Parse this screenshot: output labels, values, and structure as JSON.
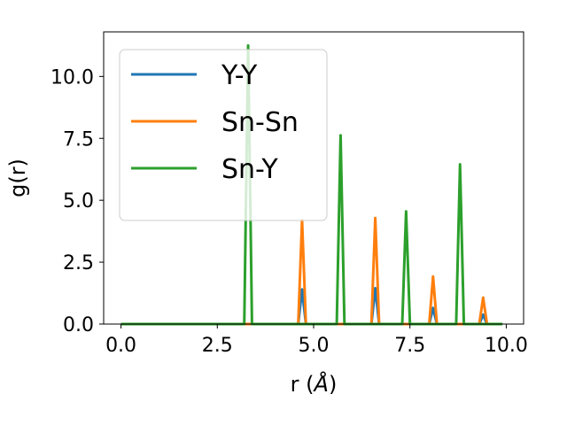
{
  "chart_data": {
    "type": "line",
    "xlabel": "r (",
    "xlabel_unit": "Å",
    "xlabel_close": ")",
    "ylabel": "g(r)",
    "xlim": [
      -0.45,
      10.45
    ],
    "ylim": [
      0,
      11.8
    ],
    "xticks": [
      0.0,
      2.5,
      5.0,
      7.5,
      10.0
    ],
    "xtick_labels": [
      "0.0",
      "2.5",
      "5.0",
      "7.5",
      "10.0"
    ],
    "yticks": [
      0.0,
      2.5,
      5.0,
      7.5,
      10.0
    ],
    "ytick_labels": [
      "0.0",
      "2.5",
      "5.0",
      "7.5",
      "10.0"
    ],
    "grid": false,
    "legend_position": "upper-left",
    "series": [
      {
        "name": "Y-Y",
        "color": "#1f77b4",
        "x": [
          0.0,
          4.6,
          4.7,
          4.8,
          6.5,
          6.6,
          6.7,
          8.0,
          8.1,
          8.2,
          9.3,
          9.4,
          9.5,
          9.9
        ],
        "y": [
          0,
          0,
          1.4,
          0,
          0,
          1.45,
          0,
          0,
          0.65,
          0,
          0,
          0.38,
          0,
          0
        ]
      },
      {
        "name": "Sn-Sn",
        "color": "#ff7f0e",
        "x": [
          0.0,
          4.6,
          4.7,
          4.8,
          6.5,
          6.6,
          6.7,
          8.0,
          8.1,
          8.2,
          9.3,
          9.4,
          9.5,
          9.9
        ],
        "y": [
          0,
          0,
          4.2,
          0,
          0,
          4.28,
          0,
          0,
          1.92,
          0,
          0,
          1.07,
          0,
          0
        ]
      },
      {
        "name": "Sn-Y",
        "color": "#2ca02c",
        "x": [
          0.0,
          3.2,
          3.3,
          3.4,
          5.6,
          5.7,
          5.8,
          7.3,
          7.4,
          7.5,
          8.7,
          8.8,
          8.9,
          9.9
        ],
        "y": [
          0,
          0,
          11.25,
          0,
          0,
          7.62,
          0,
          0,
          4.55,
          0,
          0,
          6.45,
          0,
          0
        ]
      }
    ]
  }
}
